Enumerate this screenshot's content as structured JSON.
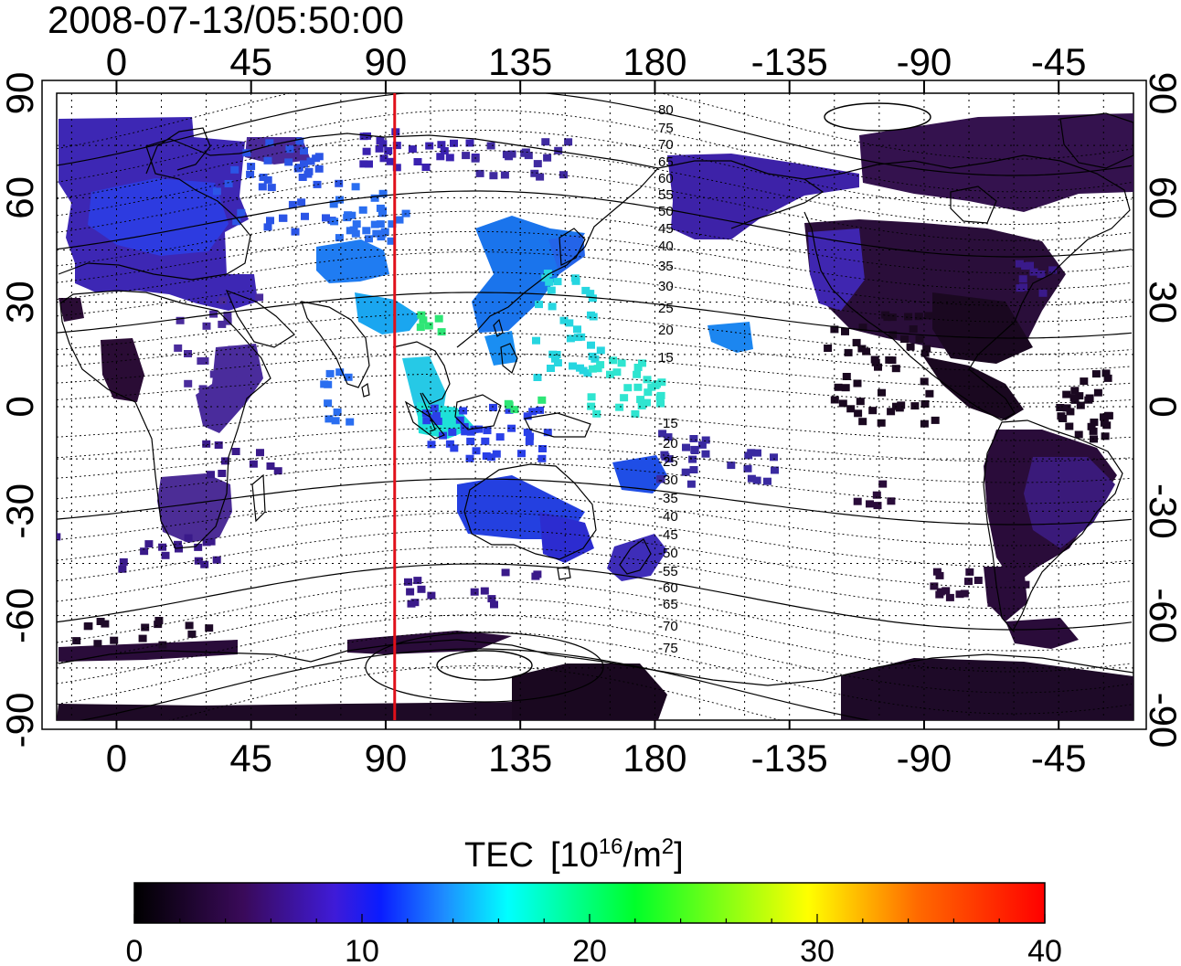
{
  "map": {
    "timestamp": "2008-07-13/05:50:00",
    "lon_ticks": [
      "0",
      "45",
      "90",
      "135",
      "180",
      "-135",
      "-90",
      "-45"
    ],
    "lat_ticks": [
      "90",
      "60",
      "30",
      "0",
      "-30",
      "-60",
      "-90"
    ],
    "contour_labels_north": [
      "80",
      "75",
      "70",
      "65",
      "60",
      "55",
      "50",
      "45",
      "40",
      "35",
      "30",
      "25",
      "20",
      "15"
    ],
    "contour_labels_south": [
      "-15",
      "-20",
      "-25",
      "-30",
      "-35",
      "-40",
      "-45",
      "-50",
      "-55",
      "-60",
      "-65",
      "-70",
      "-75"
    ],
    "meridian_marker_lon": 93,
    "colorbar": {
      "title": "TEC",
      "units_prefix": "[10",
      "units_exp": "16",
      "units_mid": "/m",
      "units_exp2": "2",
      "units_suffix": "]",
      "tick_labels": [
        "0",
        "10",
        "20",
        "30",
        "40"
      ],
      "min": 0,
      "max": 40,
      "colors": [
        "#000000",
        "#3a0a5a",
        "#3f1bd8",
        "#0a1cff",
        "#1e8cff",
        "#00ffff",
        "#00ff2a",
        "#ffff00",
        "#ff6a00",
        "#ff0000"
      ]
    }
  }
}
